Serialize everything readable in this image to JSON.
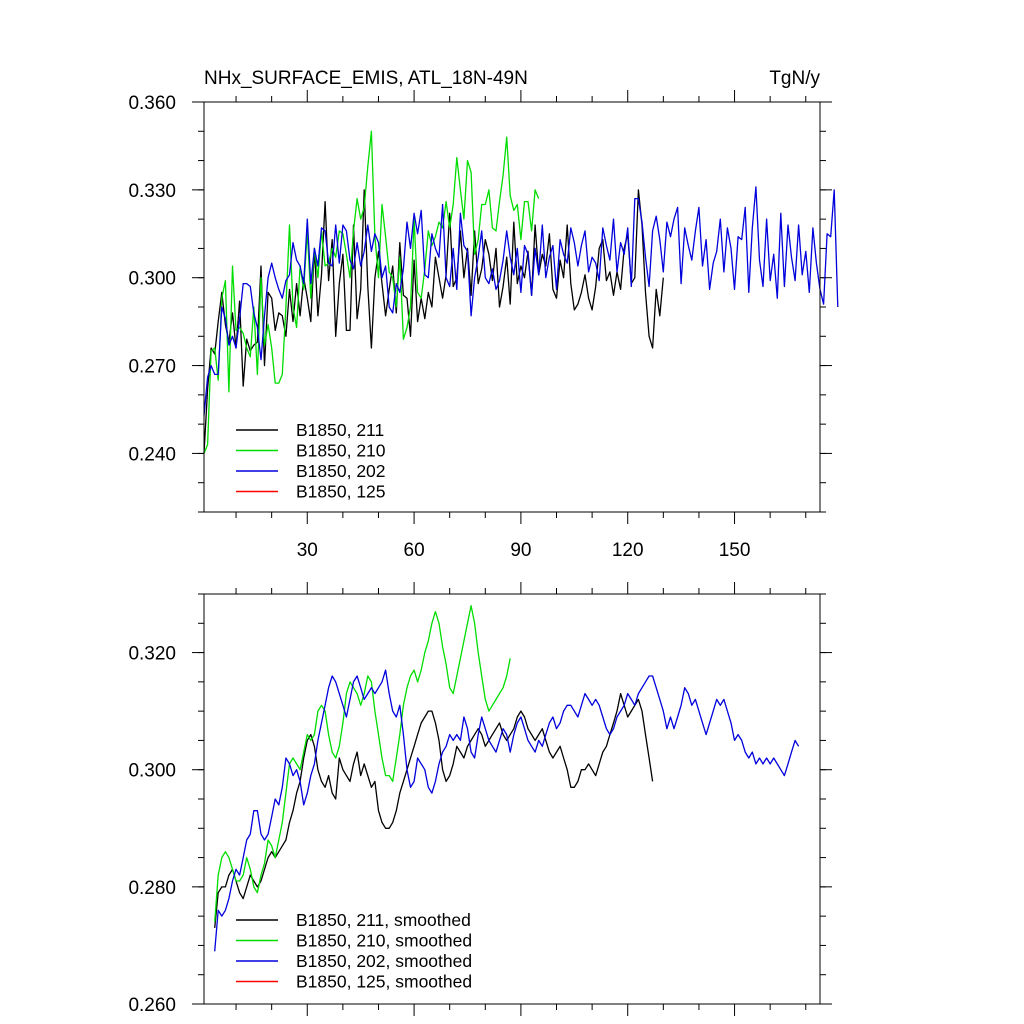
{
  "chart_data": [
    {
      "type": "line",
      "title": "NHx_SURFACE_EMIS, ATL_18N-49N",
      "units": "TgN/y",
      "xlabel": "",
      "ylabel": "",
      "xlim": [
        1,
        174
      ],
      "ylim": [
        0.22,
        0.36
      ],
      "yticks": [
        0.24,
        0.27,
        0.3,
        0.33,
        0.36
      ],
      "ytick_labels": [
        "0.240",
        "0.270",
        "0.300",
        "0.330",
        "0.360"
      ],
      "xticks": [
        30,
        60,
        90,
        120,
        150
      ],
      "xtick_labels": [
        "30",
        "60",
        "90",
        "120",
        "150"
      ],
      "grid": false,
      "legend_position": "bottom-left",
      "series": [
        {
          "name": "B1850, 211",
          "color": "#000000",
          "x_start": 1,
          "values": [
            0.24,
            0.262,
            0.276,
            0.274,
            0.285,
            0.295,
            0.284,
            0.278,
            0.288,
            0.276,
            0.292,
            0.263,
            0.279,
            0.275,
            0.277,
            0.278,
            0.304,
            0.27,
            0.295,
            0.293,
            0.282,
            0.288,
            0.287,
            0.28,
            0.296,
            0.285,
            0.298,
            0.287,
            0.3,
            0.293,
            0.285,
            0.31,
            0.287,
            0.301,
            0.326,
            0.299,
            0.313,
            0.28,
            0.298,
            0.308,
            0.282,
            0.282,
            0.318,
            0.286,
            0.296,
            0.33,
            0.297,
            0.276,
            0.3,
            0.309,
            0.298,
            0.287,
            0.296,
            0.304,
            0.288,
            0.312,
            0.294,
            0.293,
            0.28,
            0.306,
            0.285,
            0.293,
            0.286,
            0.295,
            0.29,
            0.307,
            0.3,
            0.293,
            0.301,
            0.322,
            0.297,
            0.3,
            0.316,
            0.3,
            0.31,
            0.294,
            0.316,
            0.298,
            0.303,
            0.313,
            0.308,
            0.299,
            0.31,
            0.29,
            0.297,
            0.307,
            0.291,
            0.319,
            0.298,
            0.304,
            0.3,
            0.309,
            0.294,
            0.318,
            0.301,
            0.308,
            0.304,
            0.315,
            0.296,
            0.293,
            0.306,
            0.3,
            0.318,
            0.298,
            0.289,
            0.291,
            0.295,
            0.301,
            0.293,
            0.289,
            0.297,
            0.31,
            0.313,
            0.299,
            0.302,
            0.294,
            0.302,
            0.296,
            0.31,
            0.315,
            0.298,
            0.3,
            0.33,
            0.318,
            0.295,
            0.28,
            0.276,
            0.296,
            0.287,
            0.3
          ]
        },
        {
          "name": "B1850, 210",
          "color": "#00dd00",
          "x_start": 1,
          "values": [
            0.24,
            0.243,
            0.275,
            0.276,
            0.265,
            0.293,
            0.299,
            0.261,
            0.304,
            0.282,
            0.283,
            0.281,
            0.276,
            0.273,
            0.29,
            0.267,
            0.3,
            0.277,
            0.284,
            0.276,
            0.264,
            0.264,
            0.267,
            0.29,
            0.318,
            0.29,
            0.283,
            0.304,
            0.296,
            0.316,
            0.293,
            0.31,
            0.3,
            0.316,
            0.304,
            0.305,
            0.31,
            0.307,
            0.316,
            0.315,
            0.308,
            0.3,
            0.316,
            0.327,
            0.32,
            0.324,
            0.338,
            0.35,
            0.314,
            0.3,
            0.325,
            0.314,
            0.302,
            0.3,
            0.29,
            0.307,
            0.279,
            0.283,
            0.29,
            0.32,
            0.295,
            0.293,
            0.303,
            0.316,
            0.311,
            0.314,
            0.319,
            0.317,
            0.326,
            0.317,
            0.325,
            0.341,
            0.33,
            0.32,
            0.34,
            0.336,
            0.308,
            0.313,
            0.325,
            0.325,
            0.33,
            0.317,
            0.316,
            0.326,
            0.335,
            0.348,
            0.328,
            0.323,
            0.325,
            0.313,
            0.326,
            0.326,
            0.316,
            0.33,
            0.327
          ]
        },
        {
          "name": "B1850, 202",
          "color": "#0000dd",
          "x_start": 1,
          "values": [
            0.253,
            0.266,
            0.27,
            0.267,
            0.267,
            0.29,
            0.286,
            0.277,
            0.28,
            0.276,
            0.286,
            0.298,
            0.298,
            0.297,
            0.288,
            0.283,
            0.272,
            0.287,
            0.3,
            0.305,
            0.3,
            0.296,
            0.293,
            0.299,
            0.301,
            0.312,
            0.306,
            0.304,
            0.298,
            0.32,
            0.298,
            0.31,
            0.304,
            0.317,
            0.316,
            0.305,
            0.304,
            0.318,
            0.305,
            0.318,
            0.316,
            0.306,
            0.303,
            0.312,
            0.304,
            0.309,
            0.318,
            0.309,
            0.315,
            0.312,
            0.3,
            0.304,
            0.29,
            0.288,
            0.298,
            0.295,
            0.303,
            0.319,
            0.31,
            0.322,
            0.315,
            0.323,
            0.301,
            0.3,
            0.315,
            0.31,
            0.307,
            0.325,
            0.3,
            0.297,
            0.31,
            0.296,
            0.322,
            0.311,
            0.309,
            0.287,
            0.3,
            0.307,
            0.316,
            0.3,
            0.298,
            0.303,
            0.296,
            0.299,
            0.306,
            0.316,
            0.307,
            0.301,
            0.31,
            0.295,
            0.311,
            0.308,
            0.294,
            0.31,
            0.301,
            0.318,
            0.3,
            0.307,
            0.311,
            0.296,
            0.313,
            0.308,
            0.305,
            0.317,
            0.312,
            0.304,
            0.311,
            0.316,
            0.302,
            0.307,
            0.305,
            0.299,
            0.317,
            0.311,
            0.306,
            0.32,
            0.302,
            0.312,
            0.308,
            0.317,
            0.297,
            0.327,
            0.327,
            0.319,
            0.307,
            0.297,
            0.316,
            0.321,
            0.313,
            0.302,
            0.319,
            0.314,
            0.32,
            0.324,
            0.298,
            0.317,
            0.311,
            0.306,
            0.316,
            0.324,
            0.304,
            0.313,
            0.296,
            0.305,
            0.309,
            0.32,
            0.302,
            0.317,
            0.31,
            0.296,
            0.314,
            0.313,
            0.324,
            0.295,
            0.317,
            0.331,
            0.306,
            0.297,
            0.32,
            0.299,
            0.308,
            0.293,
            0.322,
            0.297,
            0.318,
            0.307,
            0.299,
            0.318,
            0.301,
            0.309,
            0.295,
            0.317,
            0.305,
            0.296,
            0.291,
            0.315,
            0.314,
            0.33,
            0.29
          ]
        },
        {
          "name": "B1850, 125",
          "color": "#ff0000",
          "x_start": 1,
          "values": []
        }
      ]
    },
    {
      "type": "line",
      "title": "",
      "xlabel": "",
      "ylabel": "",
      "xlim": [
        1,
        174
      ],
      "ylim": [
        0.26,
        0.33
      ],
      "yticks": [
        0.26,
        0.28,
        0.3,
        0.32
      ],
      "ytick_labels": [
        "0.260",
        "0.280",
        "0.300",
        "0.320"
      ],
      "xticks": [
        30,
        60,
        90,
        120,
        150
      ],
      "grid": false,
      "legend_position": "bottom-left",
      "series": [
        {
          "name": "B1850, 211, smoothed",
          "color": "#000000",
          "x_start": 4,
          "values": [
            0.273,
            0.279,
            0.28,
            0.28,
            0.282,
            0.283,
            0.281,
            0.279,
            0.278,
            0.28,
            0.282,
            0.281,
            0.28,
            0.281,
            0.283,
            0.285,
            0.286,
            0.285,
            0.286,
            0.287,
            0.288,
            0.291,
            0.293,
            0.296,
            0.298,
            0.302,
            0.305,
            0.306,
            0.304,
            0.3,
            0.298,
            0.297,
            0.299,
            0.296,
            0.295,
            0.302,
            0.3,
            0.299,
            0.298,
            0.301,
            0.303,
            0.299,
            0.301,
            0.299,
            0.297,
            0.298,
            0.293,
            0.291,
            0.29,
            0.29,
            0.291,
            0.293,
            0.296,
            0.298,
            0.3,
            0.302,
            0.304,
            0.306,
            0.308,
            0.309,
            0.31,
            0.31,
            0.308,
            0.305,
            0.3,
            0.298,
            0.299,
            0.301,
            0.304,
            0.303,
            0.302,
            0.304,
            0.305,
            0.306,
            0.307,
            0.306,
            0.304,
            0.305,
            0.306,
            0.307,
            0.308,
            0.306,
            0.305,
            0.306,
            0.307,
            0.309,
            0.31,
            0.309,
            0.307,
            0.306,
            0.305,
            0.306,
            0.307,
            0.305,
            0.303,
            0.302,
            0.303,
            0.304,
            0.302,
            0.3,
            0.297,
            0.297,
            0.298,
            0.3,
            0.3,
            0.301,
            0.3,
            0.299,
            0.301,
            0.303,
            0.304,
            0.306,
            0.308,
            0.31,
            0.313,
            0.311,
            0.309,
            0.31,
            0.311,
            0.312,
            0.31,
            0.306,
            0.302,
            0.298
          ]
        },
        {
          "name": "B1850, 210, smoothed",
          "color": "#00dd00",
          "x_start": 4,
          "values": [
            0.274,
            0.282,
            0.285,
            0.286,
            0.285,
            0.283,
            0.281,
            0.281,
            0.282,
            0.285,
            0.283,
            0.28,
            0.279,
            0.282,
            0.284,
            0.288,
            0.287,
            0.285,
            0.288,
            0.291,
            0.296,
            0.301,
            0.302,
            0.301,
            0.3,
            0.303,
            0.306,
            0.305,
            0.306,
            0.31,
            0.311,
            0.31,
            0.306,
            0.303,
            0.302,
            0.304,
            0.308,
            0.313,
            0.315,
            0.314,
            0.313,
            0.311,
            0.313,
            0.316,
            0.315,
            0.31,
            0.306,
            0.302,
            0.299,
            0.299,
            0.298,
            0.302,
            0.306,
            0.311,
            0.314,
            0.316,
            0.317,
            0.315,
            0.317,
            0.32,
            0.322,
            0.325,
            0.327,
            0.325,
            0.321,
            0.318,
            0.314,
            0.313,
            0.316,
            0.319,
            0.322,
            0.325,
            0.328,
            0.325,
            0.32,
            0.316,
            0.312,
            0.31,
            0.311,
            0.312,
            0.313,
            0.314,
            0.316,
            0.319
          ]
        },
        {
          "name": "B1850, 202, smoothed",
          "color": "#0000dd",
          "x_start": 4,
          "values": [
            0.269,
            0.276,
            0.275,
            0.276,
            0.278,
            0.281,
            0.283,
            0.282,
            0.285,
            0.288,
            0.289,
            0.293,
            0.293,
            0.289,
            0.288,
            0.289,
            0.292,
            0.295,
            0.294,
            0.297,
            0.302,
            0.301,
            0.299,
            0.3,
            0.298,
            0.294,
            0.296,
            0.299,
            0.301,
            0.305,
            0.308,
            0.311,
            0.314,
            0.316,
            0.315,
            0.313,
            0.311,
            0.309,
            0.312,
            0.315,
            0.316,
            0.314,
            0.312,
            0.313,
            0.314,
            0.313,
            0.314,
            0.315,
            0.317,
            0.313,
            0.31,
            0.309,
            0.311,
            0.306,
            0.3,
            0.297,
            0.298,
            0.302,
            0.301,
            0.3,
            0.297,
            0.296,
            0.298,
            0.301,
            0.303,
            0.304,
            0.306,
            0.305,
            0.306,
            0.305,
            0.309,
            0.307,
            0.303,
            0.302,
            0.306,
            0.309,
            0.307,
            0.305,
            0.304,
            0.303,
            0.305,
            0.307,
            0.306,
            0.303,
            0.306,
            0.308,
            0.309,
            0.307,
            0.305,
            0.304,
            0.303,
            0.305,
            0.304,
            0.306,
            0.308,
            0.309,
            0.307,
            0.308,
            0.31,
            0.311,
            0.311,
            0.31,
            0.309,
            0.311,
            0.313,
            0.312,
            0.311,
            0.312,
            0.311,
            0.309,
            0.307,
            0.306,
            0.307,
            0.309,
            0.31,
            0.311,
            0.313,
            0.312,
            0.311,
            0.313,
            0.314,
            0.315,
            0.316,
            0.316,
            0.314,
            0.312,
            0.31,
            0.307,
            0.309,
            0.307,
            0.309,
            0.311,
            0.314,
            0.313,
            0.311,
            0.312,
            0.31,
            0.308,
            0.306,
            0.308,
            0.31,
            0.312,
            0.311,
            0.312,
            0.31,
            0.308,
            0.305,
            0.306,
            0.305,
            0.303,
            0.302,
            0.303,
            0.301,
            0.302,
            0.301,
            0.302,
            0.301,
            0.302,
            0.301,
            0.3,
            0.299,
            0.301,
            0.303,
            0.305,
            0.304
          ]
        },
        {
          "name": "B1850, 125, smoothed",
          "color": "#ff0000",
          "x_start": 4,
          "values": []
        }
      ]
    }
  ]
}
